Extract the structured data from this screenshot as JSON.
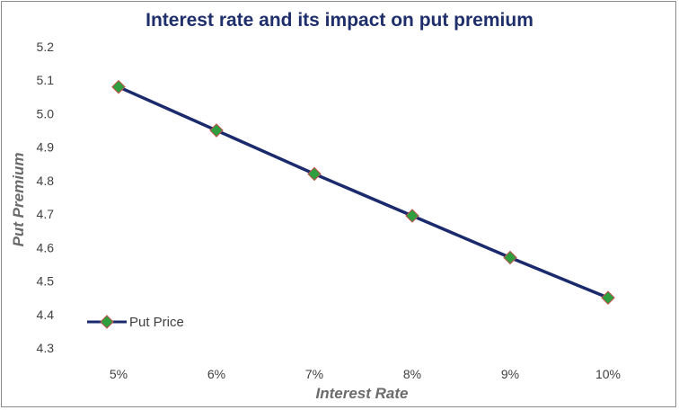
{
  "chart_data": {
    "type": "line",
    "title": "Interest rate and its impact on put premium",
    "xlabel": "Interest Rate",
    "ylabel": "Put Premium",
    "categories": [
      "5%",
      "6%",
      "7%",
      "8%",
      "9%",
      "10%"
    ],
    "series": [
      {
        "name": "Put Price",
        "values": [
          5.08,
          4.95,
          4.82,
          4.695,
          4.57,
          4.45
        ]
      }
    ],
    "ylim": [
      4.3,
      5.2
    ],
    "yticks": [
      "4.3",
      "4.4",
      "4.5",
      "4.6",
      "4.7",
      "4.8",
      "4.9",
      "5.0",
      "5.1",
      "5.2"
    ],
    "grid": false,
    "legend_position": "bottom-left"
  },
  "colors": {
    "line": "#1a2a6c",
    "marker_fill": "#2e9e3e",
    "marker_stroke": "#c0504d"
  }
}
